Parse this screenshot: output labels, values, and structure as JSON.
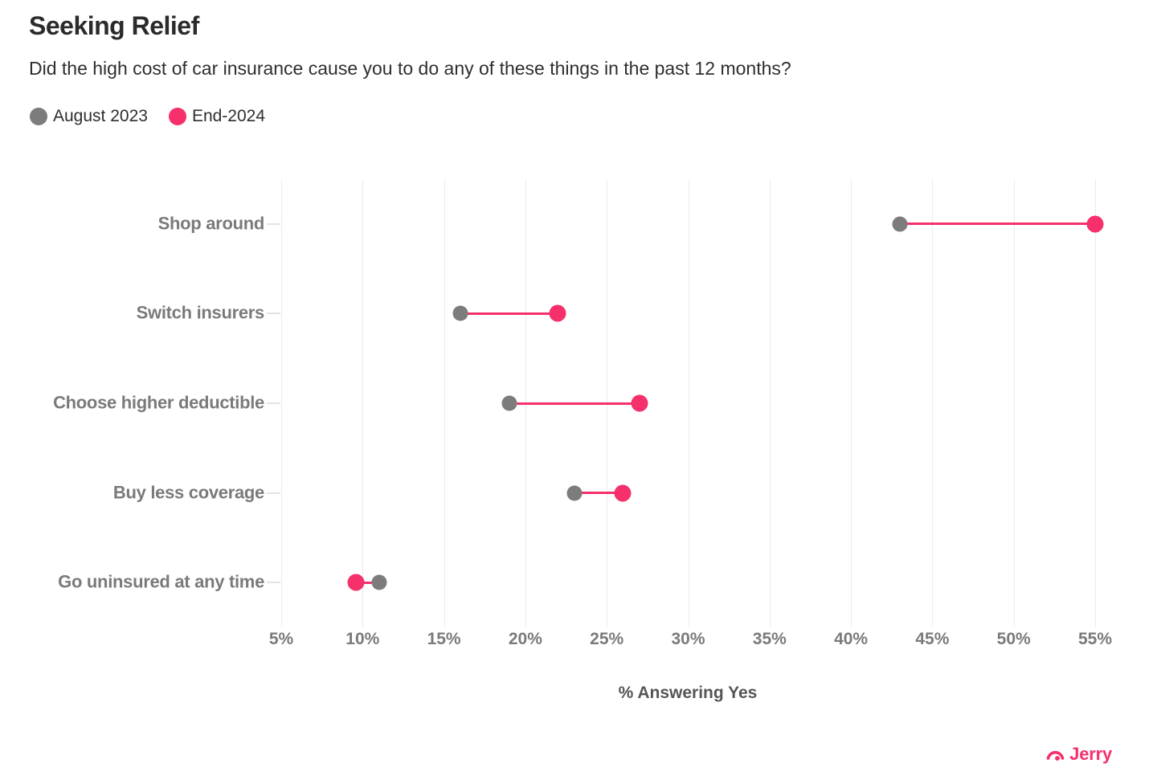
{
  "header": {
    "title": "Seeking Relief",
    "subtitle": "Did the high cost of car insurance cause you to do any of these things in the past 12 months?"
  },
  "legend": {
    "items": [
      {
        "label": "August 2023",
        "color": "#7c7c7c"
      },
      {
        "label": "End-2024",
        "color": "#f5306b"
      }
    ]
  },
  "chart_data": {
    "type": "scatter",
    "variant": "dumbbell-dot-plot",
    "title": "Seeking Relief",
    "subtitle": "Did the high cost of car insurance cause you to do any of these things in the past 12 months?",
    "categories": [
      "Shop around",
      "Switch insurers",
      "Choose higher deductible",
      "Buy less coverage",
      "Go uninsured at any time"
    ],
    "series": [
      {
        "name": "August 2023",
        "color": "#7c7c7c",
        "values": [
          43,
          16,
          19,
          23,
          11
        ]
      },
      {
        "name": "End-2024",
        "color": "#f5306b",
        "values": [
          55,
          22,
          27,
          26,
          9.6
        ]
      }
    ],
    "xlabel": "% Answering Yes",
    "ylabel": "",
    "xlim": [
      5,
      55
    ],
    "xticks": [
      5,
      10,
      15,
      20,
      25,
      30,
      35,
      40,
      45,
      50,
      55
    ],
    "xtick_suffix": "%",
    "grid": "vertical-only",
    "gridline_color": "#ececec",
    "legend_position": "top-left",
    "connector_color": "#f5306b"
  },
  "xaxis": {
    "label": "% Answering Yes"
  },
  "brand": {
    "name": "Jerry",
    "color": "#f5306b",
    "icon": "gauge-arc-icon"
  }
}
